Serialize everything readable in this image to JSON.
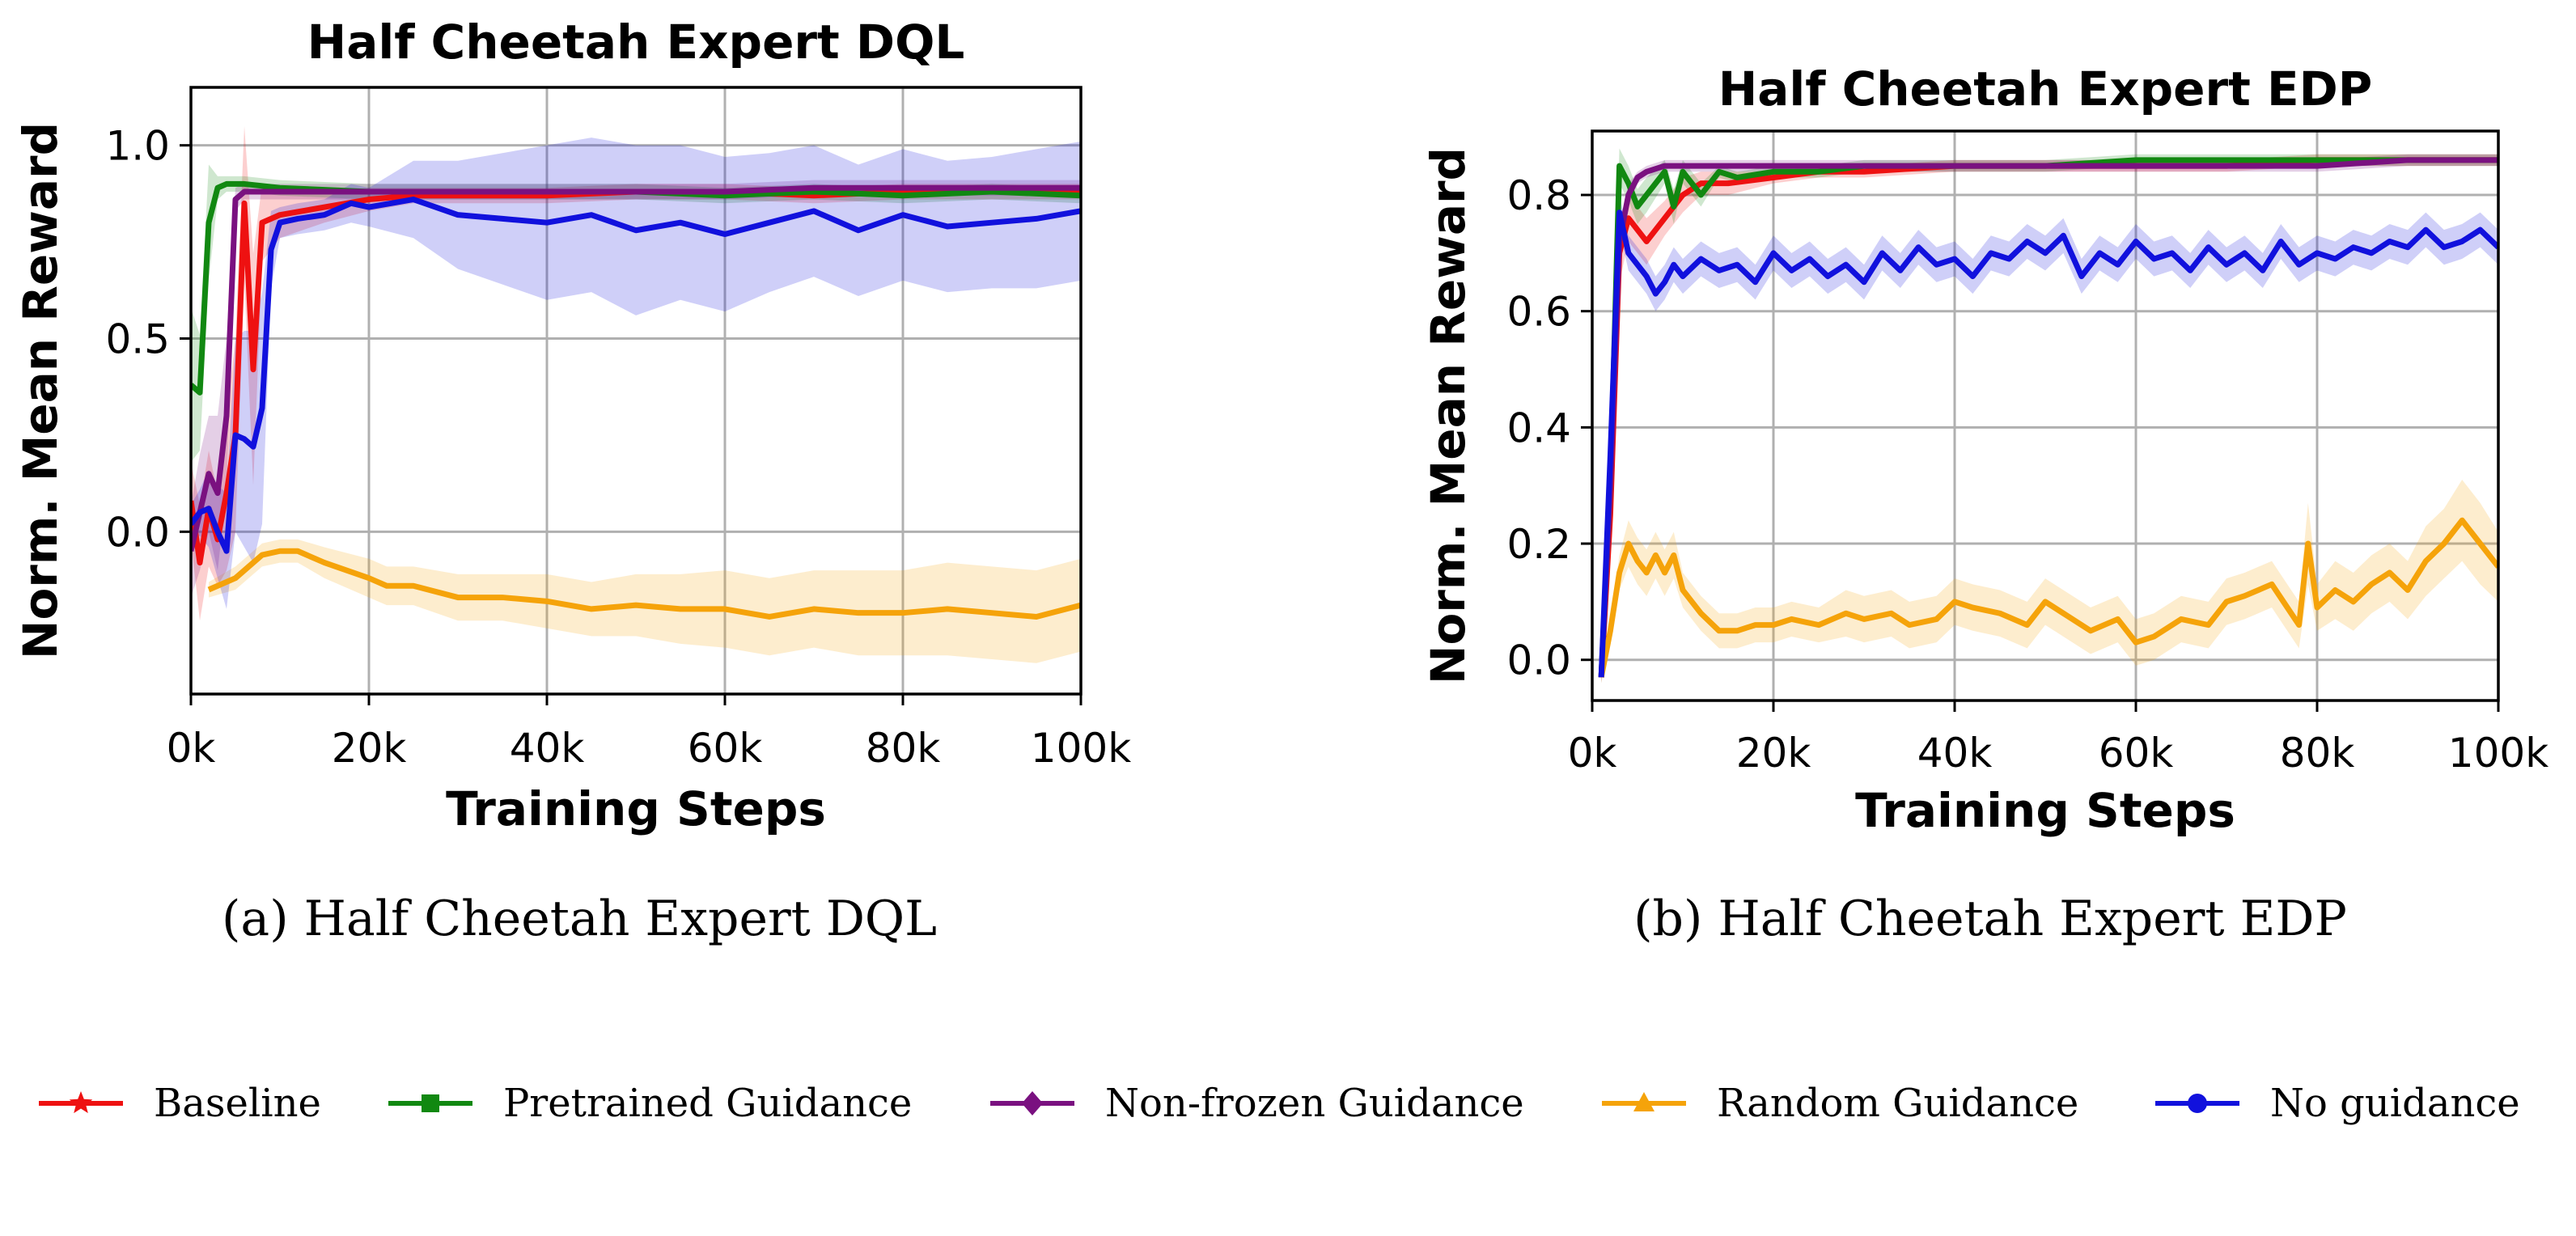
{
  "legend": [
    {
      "label": "Baseline",
      "color": "#ee1111",
      "marker": "star"
    },
    {
      "label": "Pretrained Guidance",
      "color": "#118811",
      "marker": "square"
    },
    {
      "label": "Non-frozen Guidance",
      "color": "#7a1180",
      "marker": "diamond"
    },
    {
      "label": "Random Guidance",
      "color": "#f5a30a",
      "marker": "triangle"
    },
    {
      "label": "No guidance",
      "color": "#1111dd",
      "marker": "circle"
    }
  ],
  "chart_data": [
    {
      "type": "line",
      "title": "Half Cheetah Expert DQL",
      "caption": "(a) Half Cheetah Expert DQL",
      "xlabel": "Training Steps",
      "ylabel": "Norm. Mean Reward",
      "xlim": [
        0,
        100000
      ],
      "ylim": [
        -0.42,
        1.15
      ],
      "xticks": [
        0,
        20000,
        40000,
        60000,
        80000,
        100000
      ],
      "xtick_labels": [
        "0k",
        "20k",
        "40k",
        "60k",
        "80k",
        "100k"
      ],
      "yticks": [
        0.0,
        0.5,
        1.0
      ],
      "ytick_labels": [
        "0.0",
        "0.5",
        "1.0"
      ],
      "grid": true,
      "series": [
        {
          "name": "Baseline",
          "color": "#ee1111",
          "x": [
            0,
            1000,
            2000,
            3000,
            4000,
            5000,
            6000,
            7000,
            8000,
            10000,
            15000,
            20000,
            25000,
            30000,
            40000,
            50000,
            60000,
            70000,
            80000,
            90000,
            100000
          ],
          "y": [
            0.08,
            -0.08,
            0.06,
            -0.02,
            0.1,
            0.25,
            0.85,
            0.42,
            0.8,
            0.82,
            0.84,
            0.86,
            0.87,
            0.87,
            0.87,
            0.88,
            0.88,
            0.87,
            0.88,
            0.88,
            0.88
          ],
          "band": [
            0.1,
            0.15,
            0.15,
            0.12,
            0.2,
            0.25,
            0.2,
            0.3,
            0.1,
            0.06,
            0.04,
            0.03,
            0.02,
            0.02,
            0.02,
            0.02,
            0.02,
            0.02,
            0.02,
            0.02,
            0.02
          ]
        },
        {
          "name": "Pretrained Guidance",
          "color": "#118811",
          "x": [
            0,
            1000,
            2000,
            3000,
            4000,
            6000,
            10000,
            20000,
            30000,
            40000,
            50000,
            60000,
            70000,
            80000,
            90000,
            100000
          ],
          "y": [
            0.38,
            0.36,
            0.8,
            0.89,
            0.9,
            0.9,
            0.89,
            0.88,
            0.88,
            0.88,
            0.88,
            0.87,
            0.88,
            0.87,
            0.88,
            0.87
          ],
          "band": [
            0.2,
            0.15,
            0.15,
            0.03,
            0.02,
            0.02,
            0.02,
            0.02,
            0.02,
            0.02,
            0.02,
            0.02,
            0.02,
            0.02,
            0.02,
            0.02
          ]
        },
        {
          "name": "Non-frozen Guidance",
          "color": "#7a1180",
          "x": [
            0,
            1000,
            2000,
            3000,
            4000,
            5000,
            6000,
            8000,
            10000,
            20000,
            30000,
            40000,
            50000,
            60000,
            70000,
            80000,
            90000,
            100000
          ],
          "y": [
            -0.05,
            0.05,
            0.15,
            0.1,
            0.3,
            0.86,
            0.88,
            0.88,
            0.88,
            0.88,
            0.88,
            0.88,
            0.88,
            0.88,
            0.89,
            0.89,
            0.89,
            0.89
          ],
          "band": [
            0.12,
            0.15,
            0.15,
            0.2,
            0.2,
            0.03,
            0.02,
            0.02,
            0.02,
            0.02,
            0.02,
            0.02,
            0.02,
            0.02,
            0.02,
            0.02,
            0.02,
            0.02
          ]
        },
        {
          "name": "Random Guidance",
          "color": "#f5a30a",
          "x": [
            2000,
            5000,
            8000,
            10000,
            12000,
            15000,
            20000,
            22000,
            25000,
            30000,
            35000,
            40000,
            45000,
            50000,
            55000,
            60000,
            65000,
            70000,
            75000,
            80000,
            85000,
            90000,
            95000,
            100000
          ],
          "y": [
            -0.15,
            -0.12,
            -0.06,
            -0.05,
            -0.05,
            -0.08,
            -0.12,
            -0.14,
            -0.14,
            -0.17,
            -0.17,
            -0.18,
            -0.2,
            -0.19,
            -0.2,
            -0.2,
            -0.22,
            -0.2,
            -0.21,
            -0.21,
            -0.2,
            -0.21,
            -0.22,
            -0.19
          ],
          "band": [
            0.02,
            0.03,
            0.03,
            0.03,
            0.03,
            0.04,
            0.05,
            0.05,
            0.05,
            0.06,
            0.06,
            0.07,
            0.07,
            0.08,
            0.09,
            0.1,
            0.1,
            0.1,
            0.11,
            0.11,
            0.12,
            0.12,
            0.12,
            0.12
          ]
        },
        {
          "name": "No guidance",
          "color": "#1111dd",
          "x": [
            0,
            1000,
            2000,
            3000,
            4000,
            5000,
            6000,
            7000,
            8000,
            9000,
            10000,
            12000,
            15000,
            18000,
            20000,
            25000,
            30000,
            35000,
            40000,
            45000,
            50000,
            55000,
            60000,
            65000,
            70000,
            75000,
            80000,
            85000,
            90000,
            95000,
            100000
          ],
          "y": [
            0.02,
            0.05,
            0.06,
            0.0,
            -0.05,
            0.25,
            0.24,
            0.22,
            0.32,
            0.73,
            0.8,
            0.81,
            0.82,
            0.85,
            0.84,
            0.86,
            0.82,
            0.81,
            0.8,
            0.82,
            0.78,
            0.8,
            0.77,
            0.8,
            0.83,
            0.78,
            0.82,
            0.79,
            0.8,
            0.81,
            0.83
          ],
          "band": [
            0.05,
            0.06,
            0.1,
            0.12,
            0.15,
            0.25,
            0.28,
            0.3,
            0.3,
            0.1,
            0.04,
            0.04,
            0.04,
            0.05,
            0.05,
            0.1,
            0.14,
            0.17,
            0.2,
            0.2,
            0.22,
            0.2,
            0.2,
            0.18,
            0.17,
            0.17,
            0.17,
            0.17,
            0.17,
            0.18,
            0.18
          ]
        }
      ]
    },
    {
      "type": "line",
      "title": "Half Cheetah Expert EDP",
      "caption": "(b) Half Cheetah Expert EDP",
      "xlabel": "Training Steps",
      "ylabel": "Norm. Mean Reward",
      "xlim": [
        0,
        100000
      ],
      "ylim": [
        -0.07,
        0.91
      ],
      "xticks": [
        0,
        20000,
        40000,
        60000,
        80000,
        100000
      ],
      "xtick_labels": [
        "0k",
        "20k",
        "40k",
        "60k",
        "80k",
        "100k"
      ],
      "yticks": [
        0.0,
        0.2,
        0.4,
        0.6,
        0.8
      ],
      "ytick_labels": [
        "0.0",
        "0.2",
        "0.4",
        "0.6",
        "0.8"
      ],
      "grid": true,
      "series": [
        {
          "name": "Baseline",
          "color": "#ee1111",
          "x": [
            1000,
            2000,
            3000,
            4000,
            5000,
            6000,
            8000,
            10000,
            12000,
            15000,
            20000,
            25000,
            30000,
            40000,
            50000,
            60000,
            70000,
            80000,
            90000,
            100000
          ],
          "y": [
            -0.03,
            0.25,
            0.7,
            0.76,
            0.74,
            0.72,
            0.76,
            0.8,
            0.82,
            0.82,
            0.83,
            0.84,
            0.84,
            0.85,
            0.85,
            0.85,
            0.85,
            0.86,
            0.86,
            0.86
          ],
          "band": [
            0.01,
            0.03,
            0.05,
            0.04,
            0.04,
            0.04,
            0.03,
            0.03,
            0.02,
            0.02,
            0.01,
            0.01,
            0.01,
            0.01,
            0.01,
            0.01,
            0.01,
            0.01,
            0.01,
            0.01
          ]
        },
        {
          "name": "Pretrained Guidance",
          "color": "#118811",
          "x": [
            1000,
            2000,
            3000,
            4000,
            5000,
            6000,
            8000,
            9000,
            10000,
            12000,
            14000,
            16000,
            20000,
            25000,
            30000,
            40000,
            50000,
            60000,
            70000,
            80000,
            90000,
            100000
          ],
          "y": [
            -0.03,
            0.3,
            0.85,
            0.82,
            0.78,
            0.8,
            0.84,
            0.78,
            0.84,
            0.8,
            0.84,
            0.83,
            0.84,
            0.84,
            0.85,
            0.85,
            0.85,
            0.86,
            0.86,
            0.86,
            0.86,
            0.86
          ],
          "band": [
            0.01,
            0.03,
            0.03,
            0.03,
            0.03,
            0.03,
            0.02,
            0.03,
            0.02,
            0.02,
            0.01,
            0.01,
            0.01,
            0.01,
            0.01,
            0.01,
            0.01,
            0.01,
            0.01,
            0.01,
            0.01,
            0.01
          ]
        },
        {
          "name": "Non-frozen Guidance",
          "color": "#7a1180",
          "x": [
            1000,
            2000,
            3000,
            4000,
            5000,
            6000,
            8000,
            10000,
            15000,
            20000,
            30000,
            40000,
            50000,
            60000,
            70000,
            80000,
            90000,
            100000
          ],
          "y": [
            -0.03,
            0.3,
            0.72,
            0.8,
            0.83,
            0.84,
            0.85,
            0.85,
            0.85,
            0.85,
            0.85,
            0.85,
            0.85,
            0.85,
            0.85,
            0.85,
            0.86,
            0.86
          ],
          "band": [
            0.01,
            0.03,
            0.03,
            0.02,
            0.01,
            0.01,
            0.01,
            0.01,
            0.01,
            0.01,
            0.01,
            0.01,
            0.01,
            0.01,
            0.01,
            0.01,
            0.01,
            0.01
          ]
        },
        {
          "name": "Random Guidance",
          "color": "#f5a30a",
          "x": [
            1000,
            2000,
            3000,
            4000,
            5000,
            6000,
            7000,
            8000,
            9000,
            10000,
            12000,
            14000,
            16000,
            18000,
            20000,
            22000,
            25000,
            28000,
            30000,
            33000,
            35000,
            38000,
            40000,
            42000,
            45000,
            48000,
            50000,
            52000,
            55000,
            58000,
            60000,
            62000,
            65000,
            68000,
            70000,
            72000,
            75000,
            78000,
            79000,
            80000,
            82000,
            84000,
            86000,
            88000,
            90000,
            92000,
            94000,
            96000,
            98000,
            100000
          ],
          "y": [
            -0.03,
            0.05,
            0.15,
            0.2,
            0.17,
            0.15,
            0.18,
            0.15,
            0.18,
            0.12,
            0.08,
            0.05,
            0.05,
            0.06,
            0.06,
            0.07,
            0.06,
            0.08,
            0.07,
            0.08,
            0.06,
            0.07,
            0.1,
            0.09,
            0.08,
            0.06,
            0.1,
            0.08,
            0.05,
            0.07,
            0.03,
            0.04,
            0.07,
            0.06,
            0.1,
            0.11,
            0.13,
            0.06,
            0.2,
            0.09,
            0.12,
            0.1,
            0.13,
            0.15,
            0.12,
            0.17,
            0.2,
            0.24,
            0.2,
            0.16
          ],
          "band": [
            0.01,
            0.02,
            0.03,
            0.04,
            0.04,
            0.04,
            0.04,
            0.04,
            0.04,
            0.03,
            0.03,
            0.03,
            0.03,
            0.03,
            0.03,
            0.03,
            0.03,
            0.04,
            0.04,
            0.04,
            0.04,
            0.04,
            0.04,
            0.04,
            0.04,
            0.04,
            0.04,
            0.04,
            0.04,
            0.04,
            0.04,
            0.04,
            0.04,
            0.04,
            0.04,
            0.04,
            0.04,
            0.04,
            0.07,
            0.04,
            0.05,
            0.05,
            0.05,
            0.05,
            0.05,
            0.06,
            0.06,
            0.07,
            0.07,
            0.06
          ]
        },
        {
          "name": "No guidance",
          "color": "#1111dd",
          "x": [
            1000,
            2000,
            3000,
            4000,
            5000,
            6000,
            7000,
            8000,
            9000,
            10000,
            12000,
            14000,
            16000,
            18000,
            20000,
            22000,
            24000,
            26000,
            28000,
            30000,
            32000,
            34000,
            36000,
            38000,
            40000,
            42000,
            44000,
            46000,
            48000,
            50000,
            52000,
            54000,
            56000,
            58000,
            60000,
            62000,
            64000,
            66000,
            68000,
            70000,
            72000,
            74000,
            76000,
            78000,
            80000,
            82000,
            84000,
            86000,
            88000,
            90000,
            92000,
            94000,
            96000,
            98000,
            100000
          ],
          "y": [
            -0.03,
            0.35,
            0.77,
            0.7,
            0.68,
            0.66,
            0.63,
            0.65,
            0.68,
            0.66,
            0.69,
            0.67,
            0.68,
            0.65,
            0.7,
            0.67,
            0.69,
            0.66,
            0.68,
            0.65,
            0.7,
            0.67,
            0.71,
            0.68,
            0.69,
            0.66,
            0.7,
            0.69,
            0.72,
            0.7,
            0.73,
            0.66,
            0.7,
            0.68,
            0.72,
            0.69,
            0.7,
            0.67,
            0.71,
            0.68,
            0.7,
            0.67,
            0.72,
            0.68,
            0.7,
            0.69,
            0.71,
            0.7,
            0.72,
            0.71,
            0.74,
            0.71,
            0.72,
            0.74,
            0.71
          ],
          "band": [
            0.01,
            0.03,
            0.03,
            0.03,
            0.03,
            0.03,
            0.03,
            0.03,
            0.03,
            0.03,
            0.03,
            0.03,
            0.03,
            0.03,
            0.03,
            0.03,
            0.03,
            0.03,
            0.03,
            0.03,
            0.03,
            0.03,
            0.03,
            0.03,
            0.03,
            0.03,
            0.03,
            0.03,
            0.03,
            0.03,
            0.03,
            0.03,
            0.03,
            0.03,
            0.03,
            0.03,
            0.03,
            0.03,
            0.03,
            0.03,
            0.03,
            0.03,
            0.03,
            0.03,
            0.03,
            0.03,
            0.03,
            0.03,
            0.03,
            0.03,
            0.03,
            0.03,
            0.03,
            0.03,
            0.03
          ]
        }
      ]
    }
  ]
}
